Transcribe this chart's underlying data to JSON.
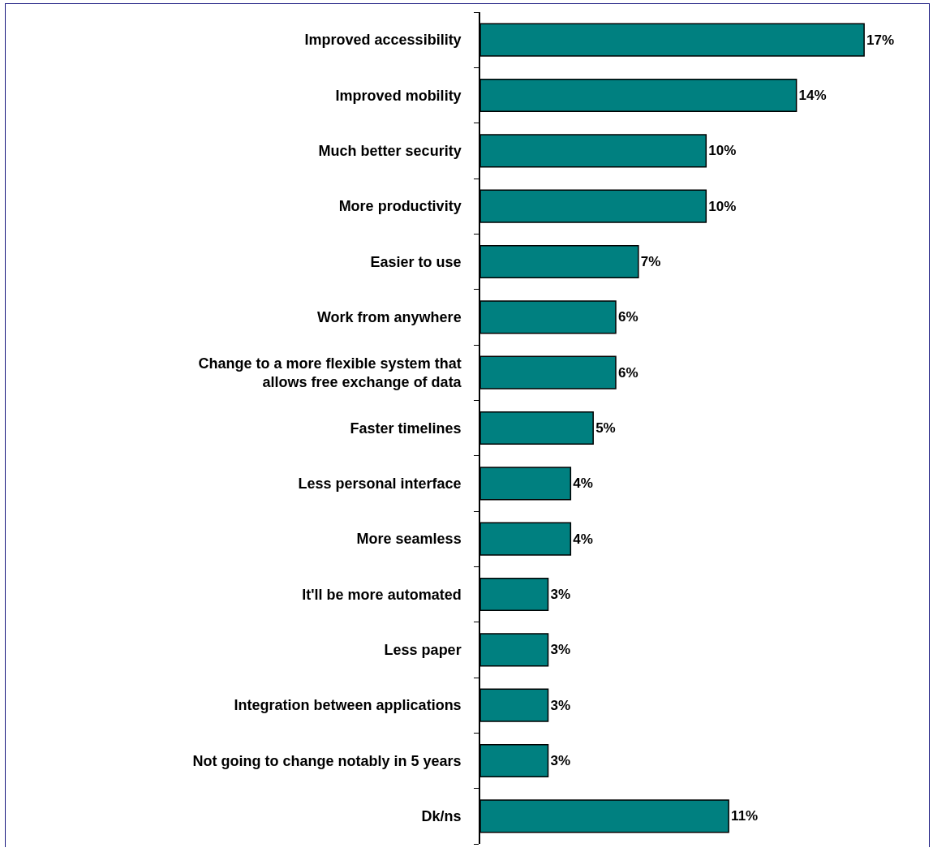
{
  "chart_data": {
    "type": "bar",
    "orientation": "horizontal",
    "categories": [
      "Improved accessibility",
      "Improved mobility",
      "Much better security",
      "More productivity",
      "Easier to use",
      "Work from anywhere",
      "Change to a more flexible system that allows free exchange of data",
      "Faster timelines",
      "Less personal interface",
      "More seamless",
      "It'll be more automated",
      "Less paper",
      "Integration between applications",
      "Not going to change notably in 5 years",
      "Dk/ns"
    ],
    "values": [
      17,
      14,
      10,
      10,
      7,
      6,
      6,
      5,
      4,
      4,
      3,
      3,
      3,
      3,
      11
    ],
    "value_labels": [
      "17%",
      "14%",
      "10%",
      "10%",
      "7%",
      "6%",
      "6%",
      "5%",
      "4%",
      "4%",
      "3%",
      "3%",
      "3%",
      "3%",
      "11%"
    ],
    "color": "#008080"
  }
}
